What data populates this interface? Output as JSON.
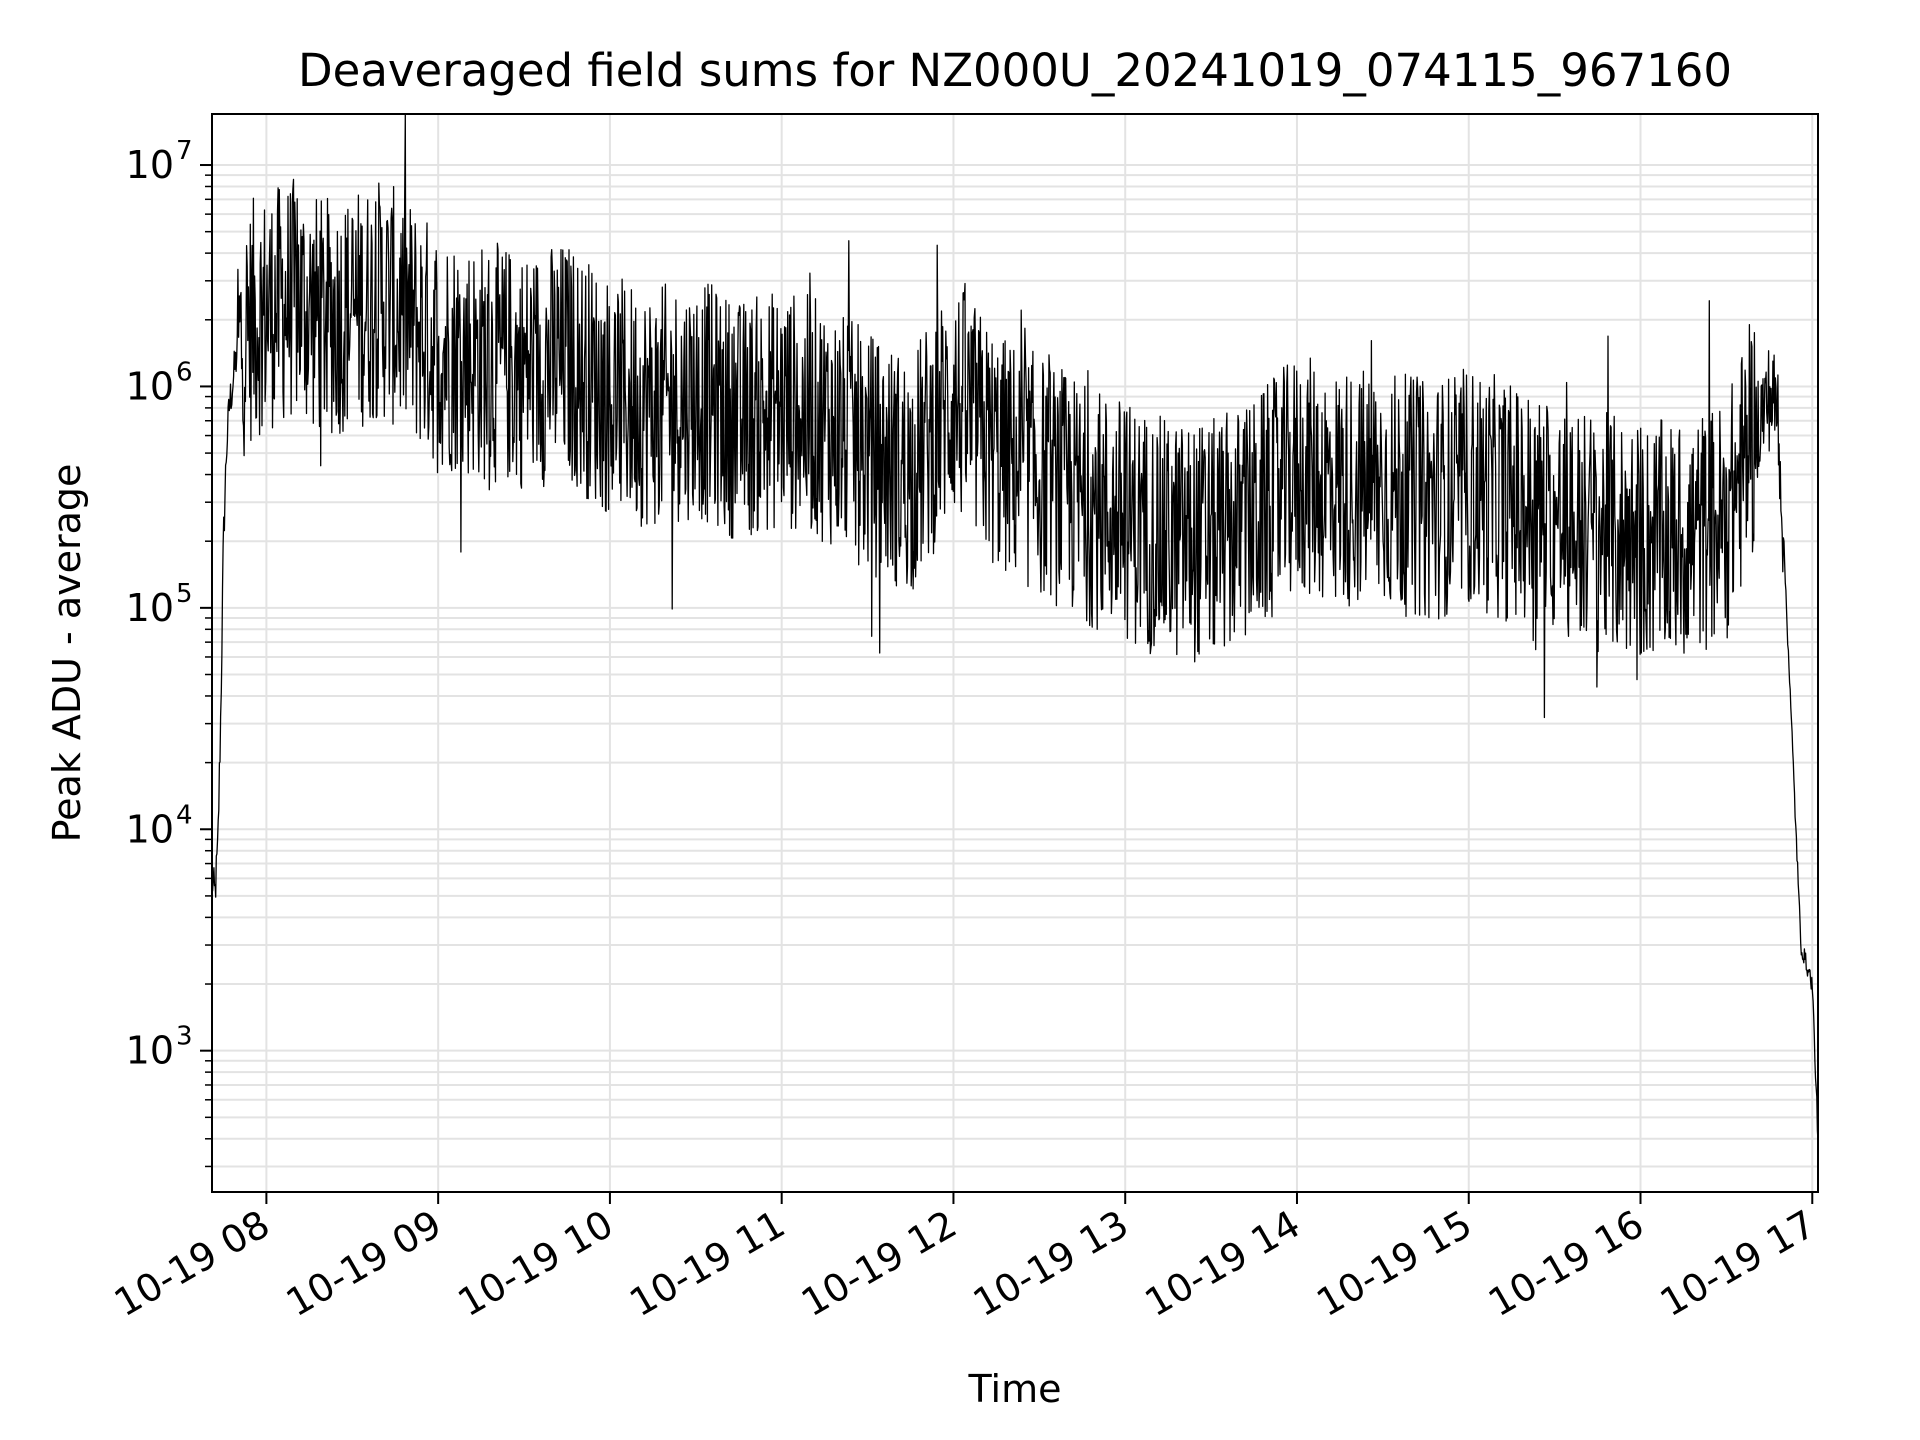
{
  "chart_data": {
    "type": "line",
    "title": "Deaveraged field sums for NZ000U_20241019_074115_967160",
    "xlabel": "Time",
    "ylabel": "Peak ADU - average",
    "y_scale": "log",
    "ylim": [
      230,
      17000000
    ],
    "xlim": [
      "2024-10-19 07:41",
      "2024-10-19 17:02"
    ],
    "x_ticks": [
      "10-19 08",
      "10-19 09",
      "10-19 10",
      "10-19 11",
      "10-19 12",
      "10-19 13",
      "10-19 14",
      "10-19 15",
      "10-19 16",
      "10-19 17"
    ],
    "y_ticks": [
      {
        "base": "10",
        "exp": "3",
        "value": 1000
      },
      {
        "base": "10",
        "exp": "4",
        "value": 10000
      },
      {
        "base": "10",
        "exp": "5",
        "value": 100000
      },
      {
        "base": "10",
        "exp": "6",
        "value": 1000000
      },
      {
        "base": "10",
        "exp": "7",
        "value": 10000000
      }
    ],
    "grid": true,
    "legend": "none",
    "series": [
      {
        "color": "#000000",
        "x": [
          "2024-10-19 07:41",
          "2024-10-19 07:42",
          "2024-10-19 07:43",
          "2024-10-19 07:44",
          "2024-10-19 07:45",
          "2024-10-19 07:46",
          "2024-10-19 07:47",
          "2024-10-19 07:50",
          "2024-10-19 07:55",
          "2024-10-19 08:00",
          "2024-10-19 08:10",
          "2024-10-19 08:20",
          "2024-10-19 08:30",
          "2024-10-19 08:40",
          "2024-10-19 08:50",
          "2024-10-19 09:00",
          "2024-10-19 09:15",
          "2024-10-19 09:30",
          "2024-10-19 09:45",
          "2024-10-19 10:00",
          "2024-10-19 10:15",
          "2024-10-19 10:30",
          "2024-10-19 10:45",
          "2024-10-19 11:00",
          "2024-10-19 11:15",
          "2024-10-19 11:30",
          "2024-10-19 11:45",
          "2024-10-19 12:00",
          "2024-10-19 12:15",
          "2024-10-19 12:30",
          "2024-10-19 12:45",
          "2024-10-19 13:00",
          "2024-10-19 13:15",
          "2024-10-19 13:30",
          "2024-10-19 13:45",
          "2024-10-19 14:00",
          "2024-10-19 14:15",
          "2024-10-19 14:30",
          "2024-10-19 14:45",
          "2024-10-19 15:00",
          "2024-10-19 15:15",
          "2024-10-19 15:30",
          "2024-10-19 15:45",
          "2024-10-19 16:00",
          "2024-10-19 16:15",
          "2024-10-19 16:30",
          "2024-10-19 16:40",
          "2024-10-19 16:45",
          "2024-10-19 16:48",
          "2024-10-19 16:52",
          "2024-10-19 16:56",
          "2024-10-19 17:00",
          "2024-10-19 17:02"
        ],
        "y": [
          6000,
          5000,
          8000,
          30000,
          200000,
          500000,
          800000,
          1500000,
          2000000,
          2200000,
          2500000,
          2000000,
          2200000,
          2500000,
          2000000,
          1500000,
          1300000,
          1200000,
          1300000,
          900000,
          800000,
          900000,
          700000,
          800000,
          700000,
          500000,
          400000,
          900000,
          500000,
          400000,
          300000,
          250000,
          200000,
          200000,
          250000,
          400000,
          350000,
          350000,
          300000,
          350000,
          300000,
          250000,
          220000,
          200000,
          200000,
          250000,
          650000,
          900000,
          800000,
          50000,
          3000,
          2000,
          400
        ]
      }
    ]
  }
}
